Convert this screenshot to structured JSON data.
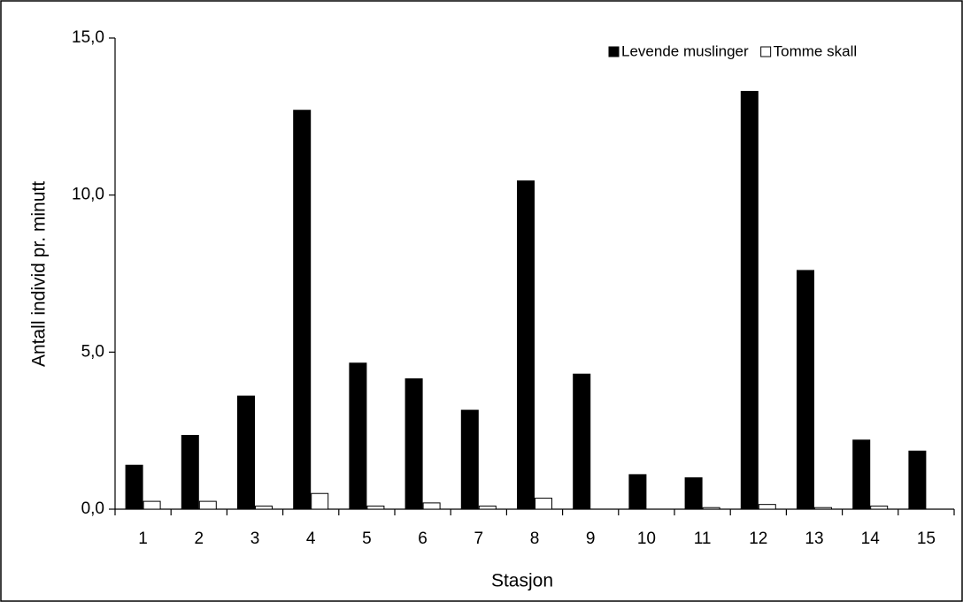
{
  "chart_data": {
    "type": "bar",
    "xlabel": "Stasjon",
    "ylabel": "Antall individ pr. minutt",
    "categories": [
      "1",
      "2",
      "3",
      "4",
      "5",
      "6",
      "7",
      "8",
      "9",
      "10",
      "11",
      "12",
      "13",
      "14",
      "15"
    ],
    "series": [
      {
        "name": "Levende muslinger",
        "color": "#000000",
        "values": [
          1.4,
          2.35,
          3.6,
          12.7,
          4.65,
          4.15,
          3.15,
          10.45,
          4.3,
          1.1,
          1.0,
          13.3,
          7.6,
          2.2,
          1.85
        ]
      },
      {
        "name": "Tomme skall",
        "color": "#ffffff",
        "values": [
          0.25,
          0.25,
          0.1,
          0.5,
          0.1,
          0.2,
          0.1,
          0.35,
          0,
          0,
          0.05,
          0.15,
          0.05,
          0.1,
          0
        ]
      }
    ],
    "ylim": [
      0,
      15
    ],
    "yticks": [
      {
        "value": 0,
        "label": "0,0"
      },
      {
        "value": 5,
        "label": "5,0"
      },
      {
        "value": 10,
        "label": "10,0"
      },
      {
        "value": 15,
        "label": "15,0"
      }
    ],
    "grid": false,
    "legend": "top-right"
  }
}
